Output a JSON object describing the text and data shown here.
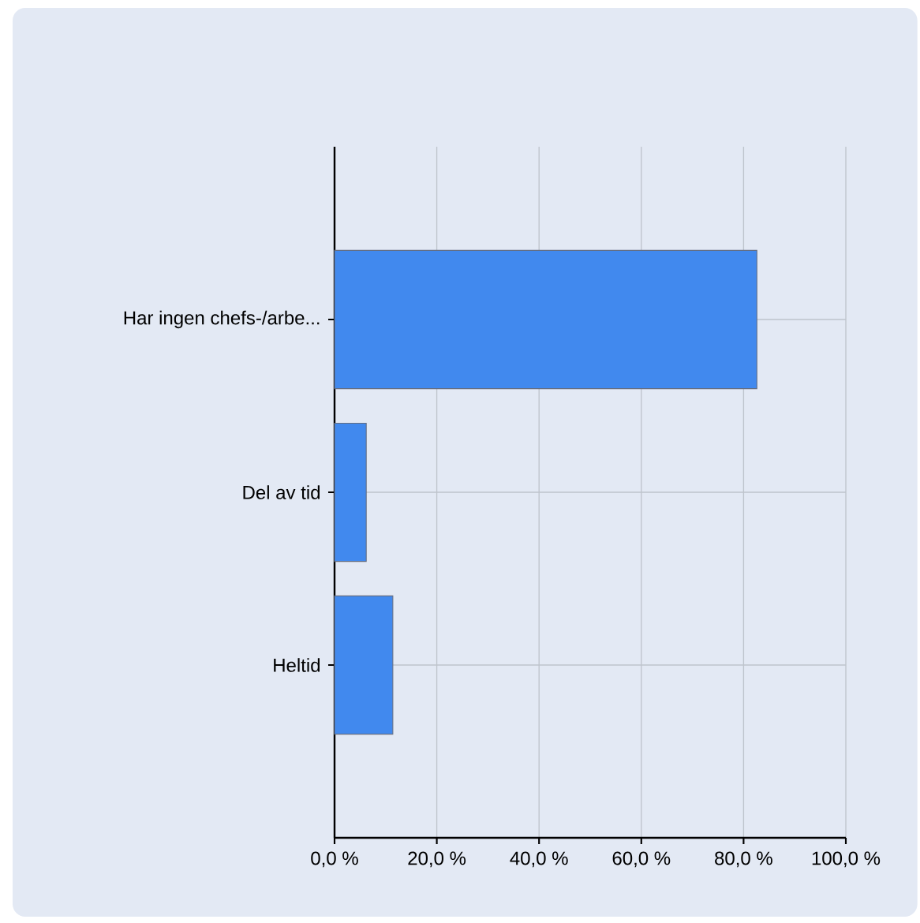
{
  "chart_data": {
    "type": "bar",
    "orientation": "horizontal",
    "categories": [
      "Har ingen chefs-/arbe...",
      "Del av tid",
      "Heltid"
    ],
    "values": [
      82.6,
      6.2,
      11.4
    ],
    "color": "#4189ee",
    "xlim": [
      0,
      100
    ],
    "xticks": [
      {
        "value": 0,
        "label": "0,0 %"
      },
      {
        "value": 20,
        "label": "20,0 %"
      },
      {
        "value": 40,
        "label": "40,0 %"
      },
      {
        "value": 60,
        "label": "60,0 %"
      },
      {
        "value": 80,
        "label": "80,0 %"
      },
      {
        "value": 100,
        "label": "100,0 %"
      }
    ],
    "grid": true
  }
}
